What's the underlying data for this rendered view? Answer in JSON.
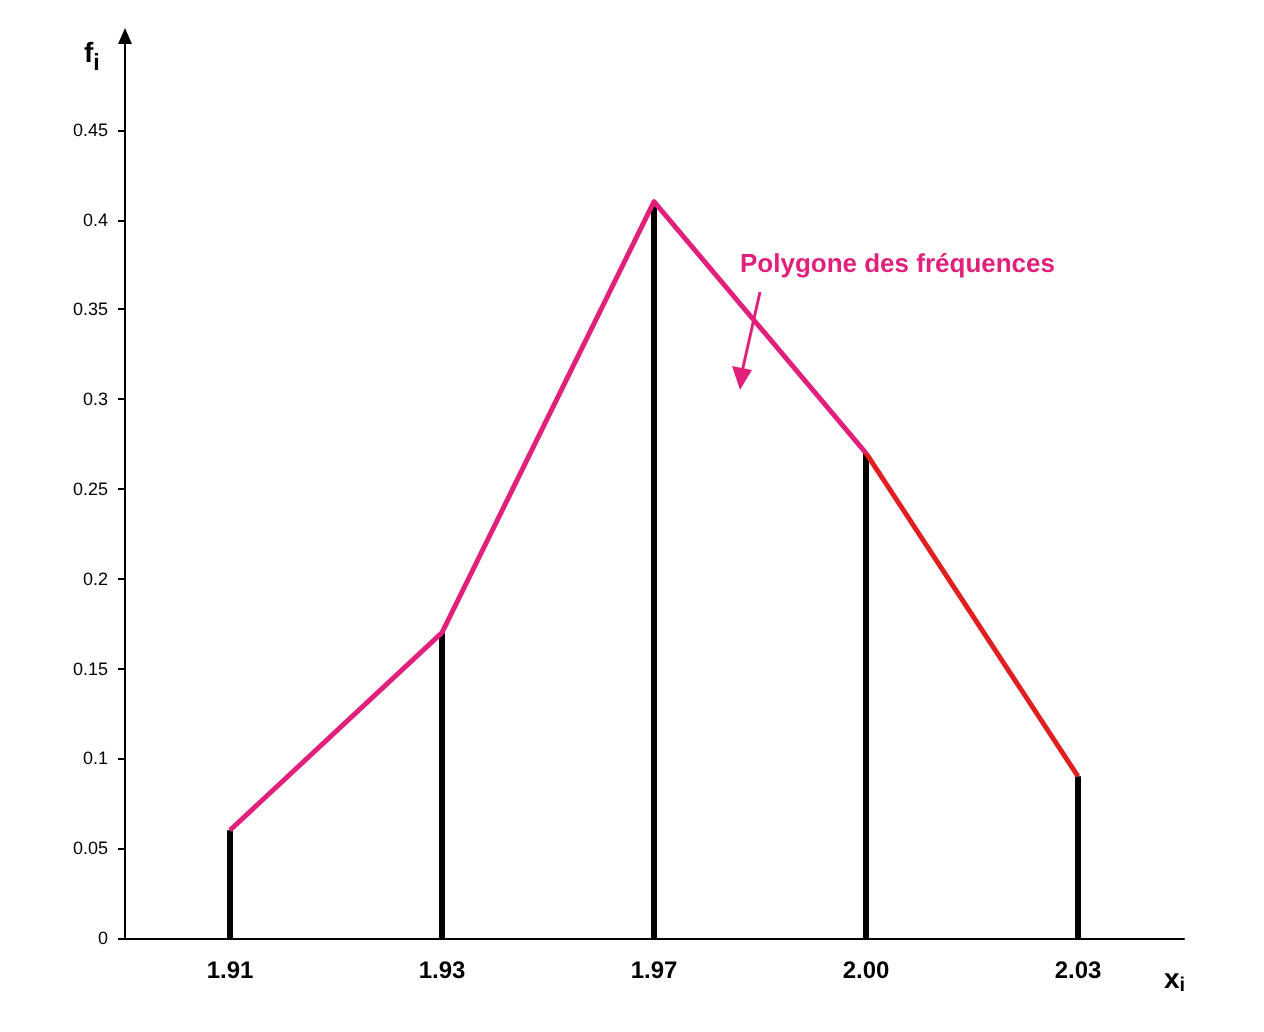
{
  "chart_data": {
    "type": "bar",
    "xlabel": "x$_{i}$",
    "ylabel": "f$_{i}$",
    "categories": [
      "1.91",
      "1.93",
      "1.97",
      "2.00",
      "2.03"
    ],
    "series": [
      {
        "color": "#000000",
        "values": [
          0.06,
          0.17,
          0.41,
          0.27,
          0.09
        ]
      },
      {
        "type": "line",
        "color": "#e0207a",
        "values": [
          0.06,
          0.17,
          0.41,
          0.27,
          null
        ]
      },
      {
        "type": "line",
        "color": "#e02020",
        "values": [
          null,
          null,
          null,
          0.27,
          0.09
        ]
      }
    ],
    "ylim": [
      0,
      0.5
    ],
    "yticks": [
      0,
      0.05,
      0.1,
      0.15,
      0.2,
      0.25,
      0.3,
      0.35,
      0.4,
      0.45
    ],
    "grid": false,
    "marker": "none",
    "line_style": "solid",
    "annotations": [
      "Polygone des fréquences"
    ]
  }
}
